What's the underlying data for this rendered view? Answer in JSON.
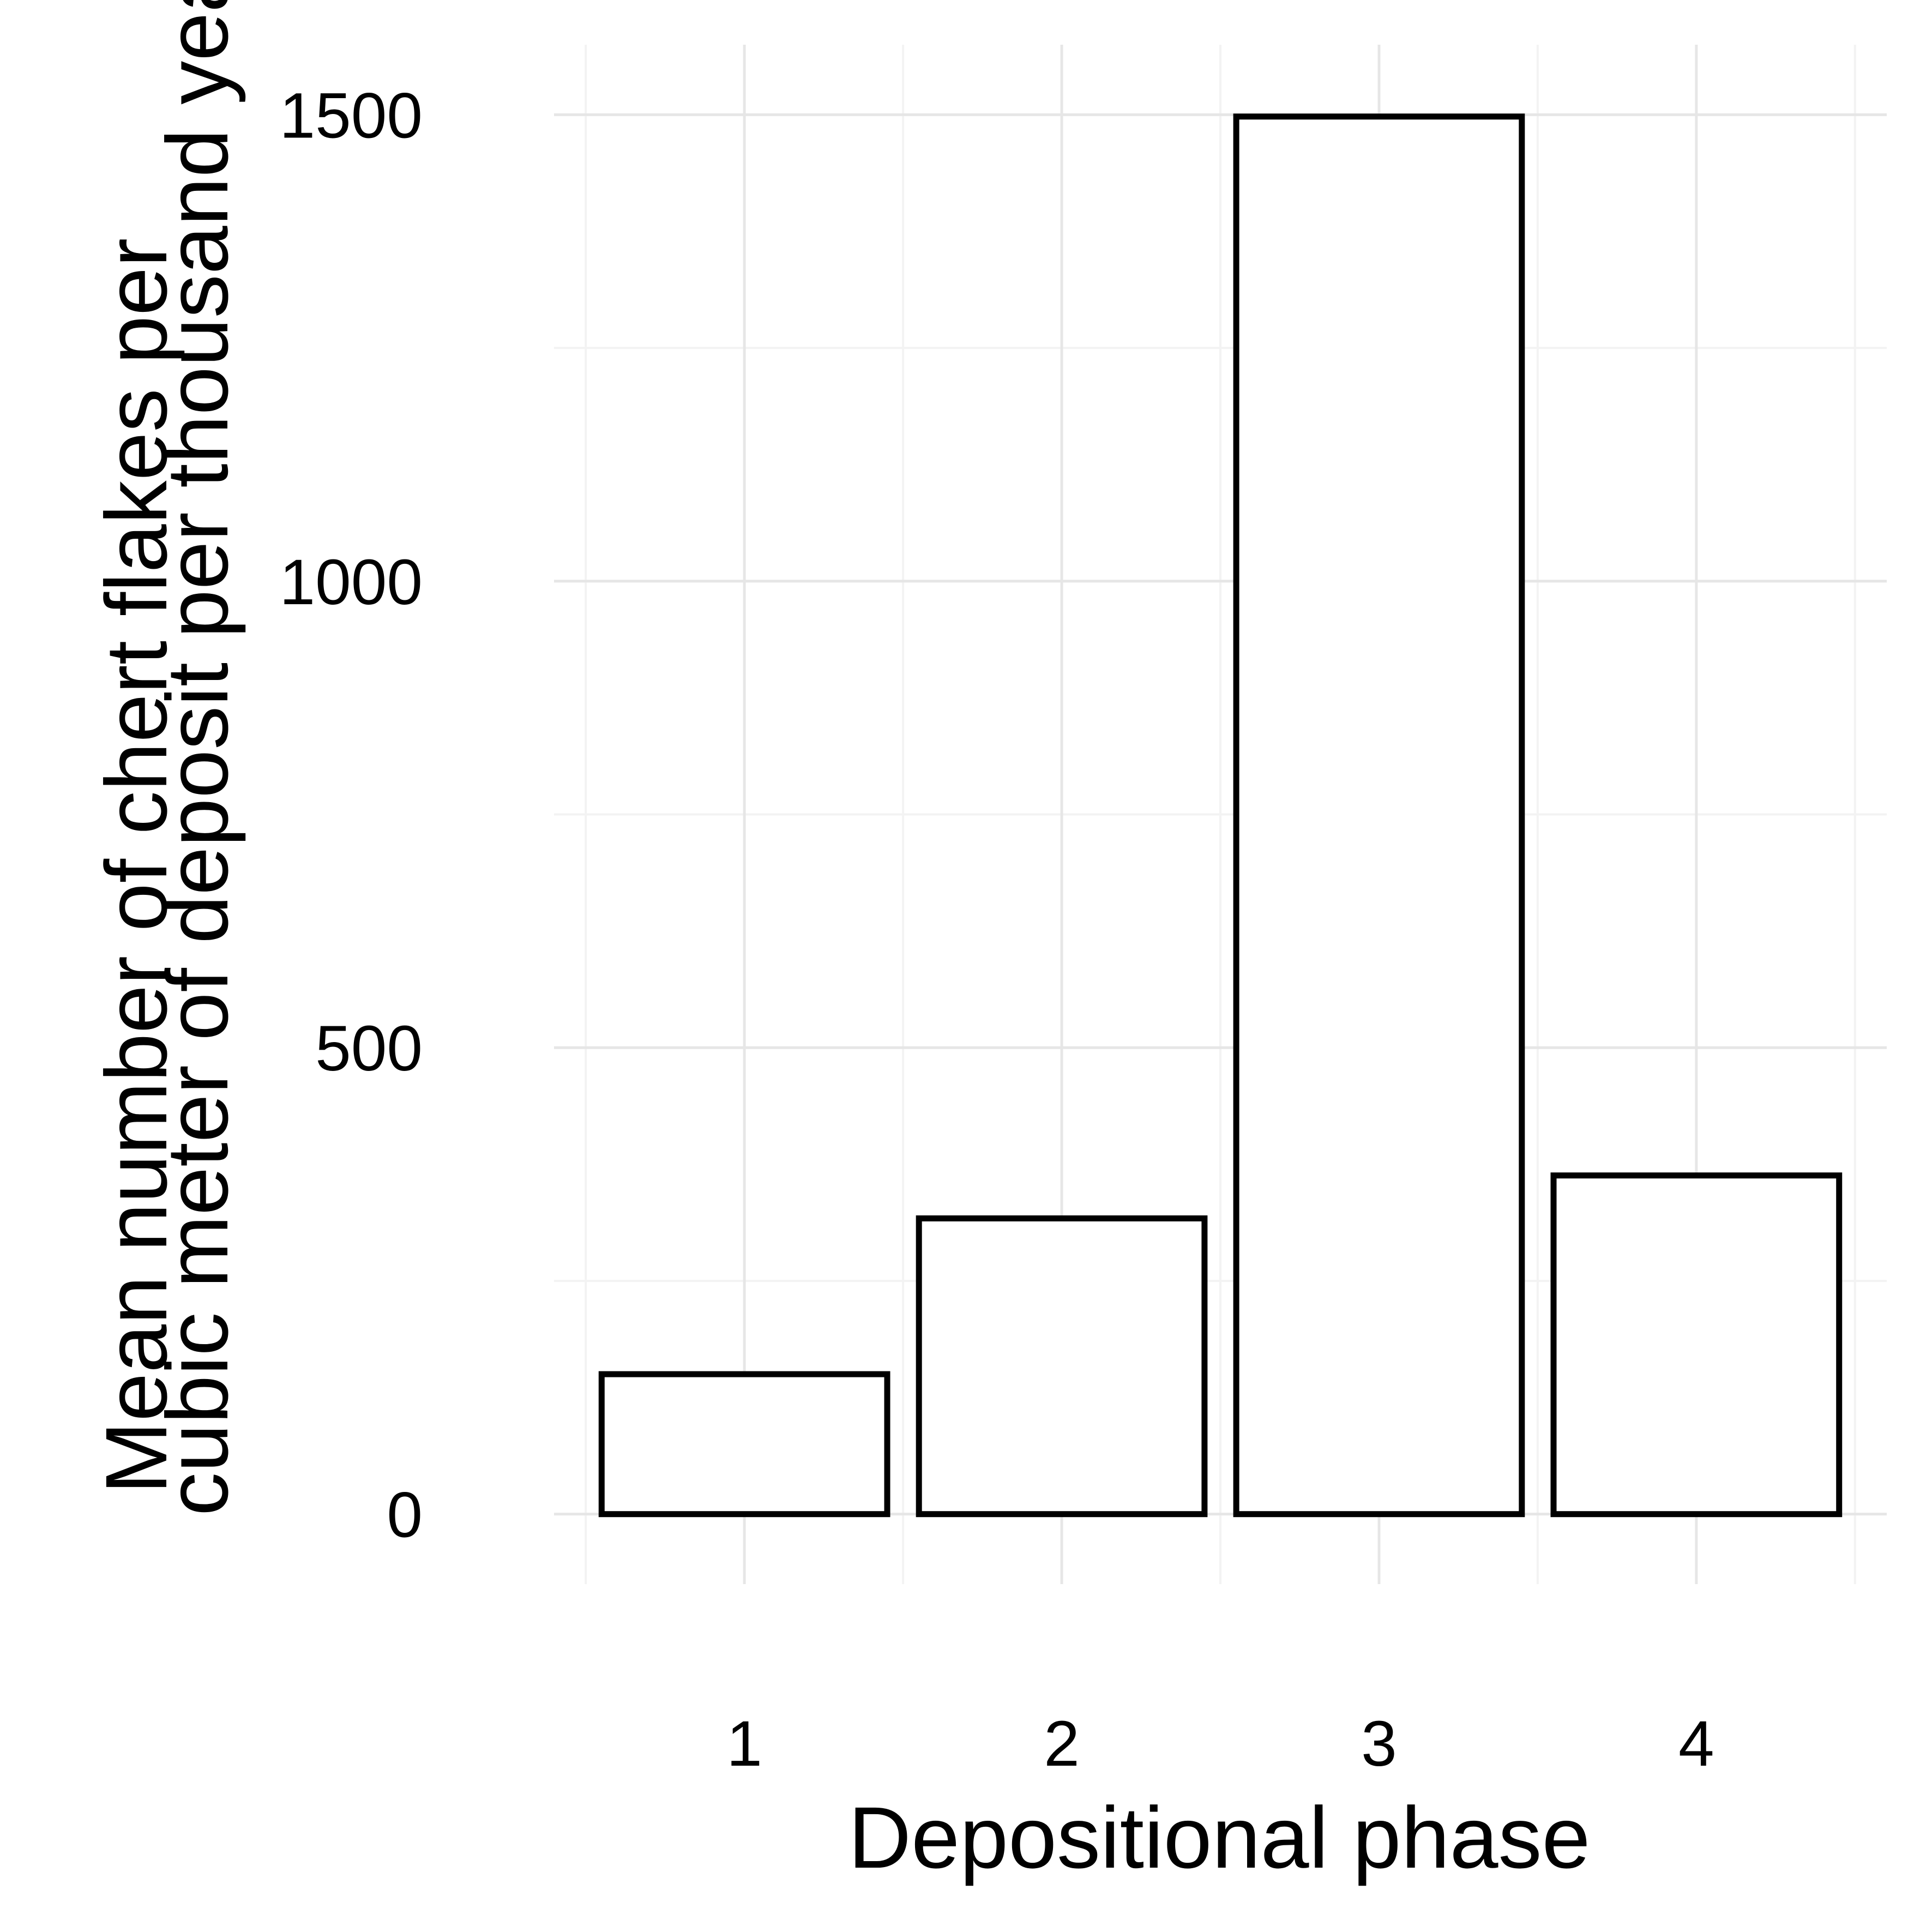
{
  "chart_data": {
    "type": "bar",
    "categories": [
      "1",
      "2",
      "3",
      "4"
    ],
    "values": [
      150,
      317,
      1498,
      363
    ],
    "title": "",
    "xlabel": "Depositional phase",
    "ylabel_lines": [
      "Mean number of chert flakes per",
      "cubic meter of deposit per thousand years in both trenches"
    ],
    "yticks": [
      "0",
      "500",
      "1000",
      "1500"
    ],
    "ylim": [
      -75,
      1575
    ],
    "grid": true,
    "legend": "none",
    "colors": {
      "fill": "#ffffff",
      "stroke": "#000000",
      "grid": "#e6e6e6"
    }
  }
}
